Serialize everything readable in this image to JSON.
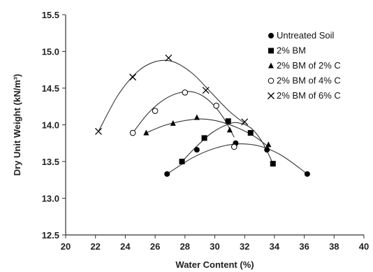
{
  "chart_data": {
    "type": "scatter",
    "title": "",
    "xlabel": "Water Content (%)",
    "ylabel": "Dry Unit Weight  (kN/m³)",
    "xlim": [
      20,
      40
    ],
    "ylim": [
      12.5,
      15.5
    ],
    "xticks": [
      "20",
      "22",
      "24",
      "26",
      "28",
      "30",
      "32",
      "34",
      "36",
      "38",
      "40"
    ],
    "yticks": [
      "12.5",
      "13.0",
      "13.5",
      "14.0",
      "14.5",
      "15.0",
      "15.5"
    ],
    "grid": false,
    "legend_position": "top-right",
    "series": [
      {
        "name": "Untreated Soil",
        "marker": "filled-circle",
        "points": [
          [
            26.8,
            13.33
          ],
          [
            28.8,
            13.66
          ],
          [
            31.4,
            13.75
          ],
          [
            33.5,
            13.66
          ],
          [
            36.2,
            13.33
          ]
        ],
        "curve": [
          [
            26.8,
            13.33
          ],
          [
            28.5,
            13.55
          ],
          [
            30.0,
            13.68
          ],
          [
            31.5,
            13.74
          ],
          [
            33.0,
            13.71
          ],
          [
            34.5,
            13.58
          ],
          [
            36.2,
            13.33
          ]
        ]
      },
      {
        "name": "2% BM",
        "marker": "filled-square",
        "points": [
          [
            27.8,
            13.5
          ],
          [
            29.3,
            13.82
          ],
          [
            30.9,
            14.05
          ],
          [
            32.4,
            13.89
          ],
          [
            33.9,
            13.47
          ]
        ],
        "curve": [
          [
            27.8,
            13.5
          ],
          [
            28.8,
            13.71
          ],
          [
            29.8,
            13.89
          ],
          [
            30.8,
            14.0
          ],
          [
            31.5,
            14.03
          ],
          [
            32.4,
            13.96
          ],
          [
            33.2,
            13.76
          ],
          [
            33.9,
            13.47
          ]
        ]
      },
      {
        "name": "2% BM of 2% C",
        "marker": "filled-triangle",
        "points": [
          [
            25.4,
            13.89
          ],
          [
            27.2,
            14.02
          ],
          [
            28.8,
            14.1
          ],
          [
            31.0,
            13.93
          ],
          [
            33.6,
            13.73
          ]
        ],
        "curve": [
          [
            25.4,
            13.89
          ],
          [
            26.6,
            13.99
          ],
          [
            27.8,
            14.05
          ],
          [
            29.0,
            14.08
          ],
          [
            30.2,
            14.05
          ],
          [
            31.4,
            13.97
          ],
          [
            32.6,
            13.85
          ],
          [
            33.6,
            13.7
          ]
        ]
      },
      {
        "name": "2% BM of 4% C",
        "marker": "open-circle",
        "points": [
          [
            24.5,
            13.89
          ],
          [
            26.0,
            14.19
          ],
          [
            28.0,
            14.44
          ],
          [
            30.1,
            14.26
          ],
          [
            31.3,
            13.7
          ]
        ],
        "curve": [
          [
            24.5,
            13.89
          ],
          [
            25.5,
            14.15
          ],
          [
            26.5,
            14.33
          ],
          [
            27.5,
            14.43
          ],
          [
            28.5,
            14.45
          ],
          [
            29.5,
            14.35
          ],
          [
            30.5,
            14.12
          ],
          [
            31.3,
            13.83
          ]
        ]
      },
      {
        "name": "2% BM of 6% C",
        "marker": "cross",
        "points": [
          [
            22.2,
            13.91
          ],
          [
            24.5,
            14.65
          ],
          [
            26.9,
            14.91
          ],
          [
            29.4,
            14.47
          ],
          [
            32.0,
            14.04
          ]
        ],
        "curve": [
          [
            22.2,
            13.91
          ],
          [
            23.5,
            14.4
          ],
          [
            24.8,
            14.72
          ],
          [
            26.0,
            14.86
          ],
          [
            27.2,
            14.86
          ],
          [
            28.5,
            14.7
          ],
          [
            29.8,
            14.43
          ],
          [
            31.0,
            14.18
          ],
          [
            32.0,
            14.02
          ]
        ]
      }
    ]
  }
}
